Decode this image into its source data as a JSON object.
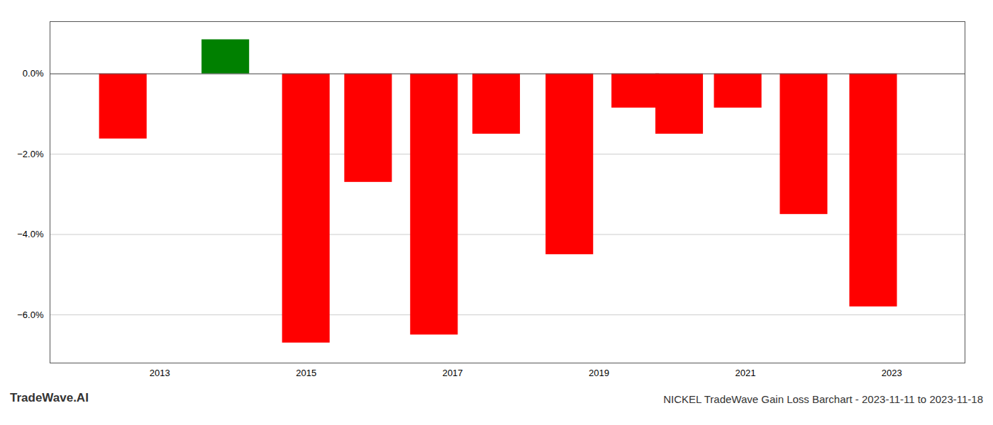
{
  "chart_data": {
    "type": "bar",
    "title": "NICKEL TradeWave Gain Loss Barchart - 2023-11-11 to 2023-11-18",
    "annotations": [
      "TradeWave.AI"
    ],
    "x": [
      2012.5,
      2013.9,
      2015.0,
      2015.85,
      2016.75,
      2017.6,
      2018.6,
      2019.5,
      2020.1,
      2020.9,
      2021.8,
      2022.75
    ],
    "values": [
      -1.62,
      0.85,
      -6.7,
      -2.7,
      -6.5,
      -1.5,
      -4.5,
      -0.85,
      -1.5,
      -0.85,
      -3.5,
      -5.8
    ],
    "colors": [
      "#ff0000",
      "#008000",
      "#ff0000",
      "#ff0000",
      "#ff0000",
      "#ff0000",
      "#ff0000",
      "#ff0000",
      "#ff0000",
      "#ff0000",
      "#ff0000",
      "#ff0000"
    ],
    "xlim": [
      2011.5,
      2024.0
    ],
    "xticks": [
      2013,
      2015,
      2017,
      2019,
      2021,
      2023
    ],
    "ylim": [
      -7.2,
      1.3
    ],
    "yticks": [
      {
        "value": 0.0,
        "label": "0.0%"
      },
      {
        "value": -2.0,
        "label": "−2.0%"
      },
      {
        "value": -4.0,
        "label": "−4.0%"
      },
      {
        "value": -6.0,
        "label": "−6.0%"
      }
    ],
    "grid": true
  }
}
